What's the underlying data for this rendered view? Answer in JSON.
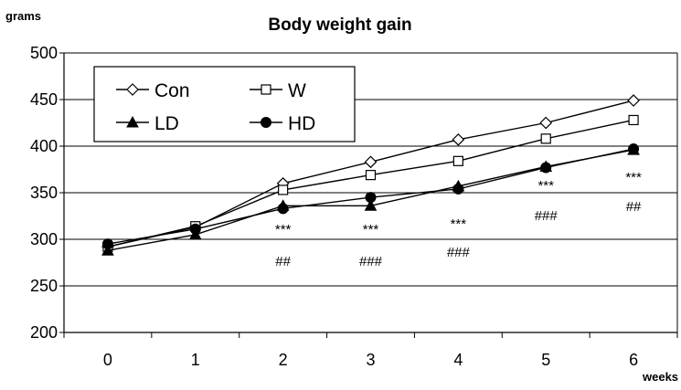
{
  "chart_data": {
    "type": "line",
    "title": "Body weight gain",
    "ylabel": "grams",
    "xlabel": "weeks",
    "x": [
      0,
      1,
      2,
      3,
      4,
      5,
      6
    ],
    "ylim": [
      200,
      500
    ],
    "yticks": [
      200,
      250,
      300,
      350,
      400,
      450,
      500
    ],
    "grid": "horizontal",
    "legend": "top-left",
    "series": [
      {
        "name": "Con",
        "marker": "diamond-open",
        "values": [
          292,
          313,
          360,
          383,
          407,
          425,
          449
        ]
      },
      {
        "name": "W",
        "marker": "square-open",
        "values": [
          292,
          314,
          353,
          369,
          384,
          408,
          428
        ]
      },
      {
        "name": "LD",
        "marker": "triangle-filled",
        "values": [
          288,
          305,
          336,
          336,
          357,
          378,
          396
        ]
      },
      {
        "name": "HD",
        "marker": "circle-filled",
        "values": [
          295,
          311,
          333,
          345,
          354,
          377,
          397
        ]
      }
    ],
    "annotations": [
      {
        "x": 2,
        "lines": [
          "***",
          "##"
        ]
      },
      {
        "x": 3,
        "lines": [
          "***",
          "###"
        ]
      },
      {
        "x": 4,
        "lines": [
          "***",
          "###"
        ]
      },
      {
        "x": 5,
        "lines": [
          "***",
          "###"
        ]
      },
      {
        "x": 6,
        "lines": [
          "***",
          "##"
        ]
      }
    ]
  }
}
